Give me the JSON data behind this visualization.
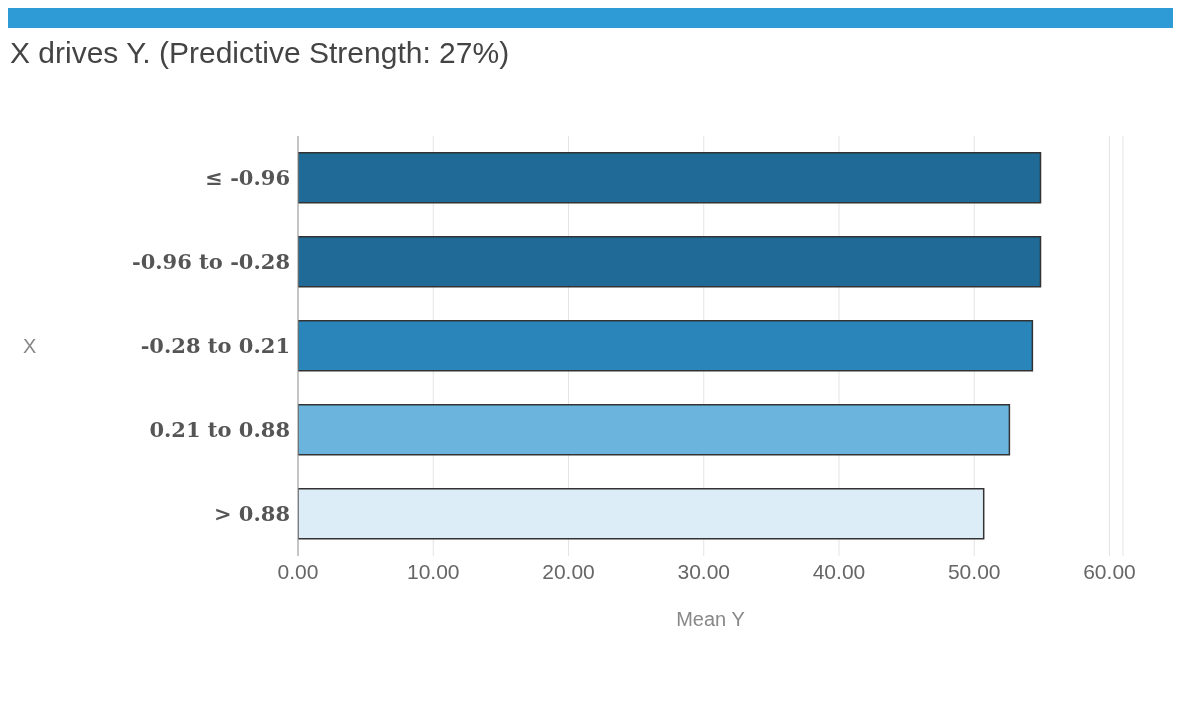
{
  "chart_data": {
    "type": "bar",
    "orientation": "horizontal",
    "title": "X drives Y. (Predictive Strength: 27%)",
    "xlabel": "Mean Y",
    "ylabel": "X",
    "categories": [
      "≤ -0.96",
      "-0.96 to -0.28",
      "-0.28 to 0.21",
      "0.21 to 0.88",
      "> 0.88"
    ],
    "values": [
      54.9,
      54.9,
      54.3,
      52.6,
      50.7
    ],
    "colors": [
      "#1f6a97",
      "#1f6a97",
      "#2a85bb",
      "#6ab4de",
      "#dcedf8"
    ],
    "xlim": [
      0,
      61
    ],
    "xticks": [
      {
        "value": 0,
        "label": "0.00"
      },
      {
        "value": 10,
        "label": "10.00"
      },
      {
        "value": 20,
        "label": "20.00"
      },
      {
        "value": 30,
        "label": "30.00"
      },
      {
        "value": 40,
        "label": "40.00"
      },
      {
        "value": 50,
        "label": "50.00"
      },
      {
        "value": 60,
        "label": "60.00"
      }
    ],
    "grid": "x"
  }
}
